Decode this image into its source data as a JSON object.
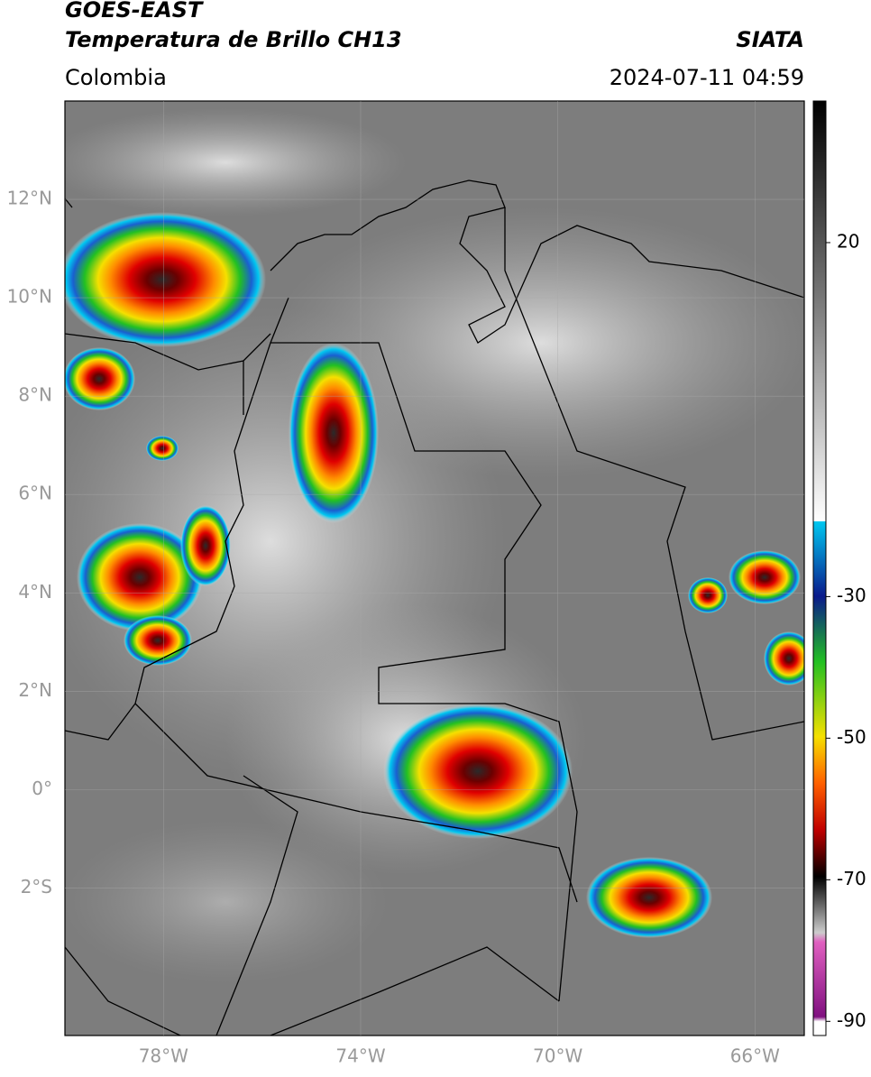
{
  "header": {
    "satellite": "GOES-EAST",
    "product": "Temperatura de Brillo CH13",
    "agency": "SIATA",
    "region": "Colombia",
    "datetime": "2024-07-11 04:59"
  },
  "map": {
    "lonlim": [
      -80,
      -65
    ],
    "latlim": [
      -5,
      14
    ],
    "lonticks": [
      {
        "value": -78,
        "label": "78°W"
      },
      {
        "value": -74,
        "label": "74°W"
      },
      {
        "value": -70,
        "label": "70°W"
      },
      {
        "value": -66,
        "label": "66°W"
      }
    ],
    "latticks": [
      {
        "value": 12,
        "label": "12°N"
      },
      {
        "value": 10,
        "label": "10°N"
      },
      {
        "value": 8,
        "label": "8°N"
      },
      {
        "value": 6,
        "label": "6°N"
      },
      {
        "value": 4,
        "label": "4°N"
      },
      {
        "value": 2,
        "label": "2°N"
      },
      {
        "value": 0,
        "label": "0°"
      },
      {
        "value": -2,
        "label": "2°S"
      }
    ],
    "grid": true
  },
  "colorbar": {
    "clim": [
      -92,
      40
    ],
    "ticks": [
      20,
      -30,
      -50,
      -70,
      -90
    ]
  }
}
